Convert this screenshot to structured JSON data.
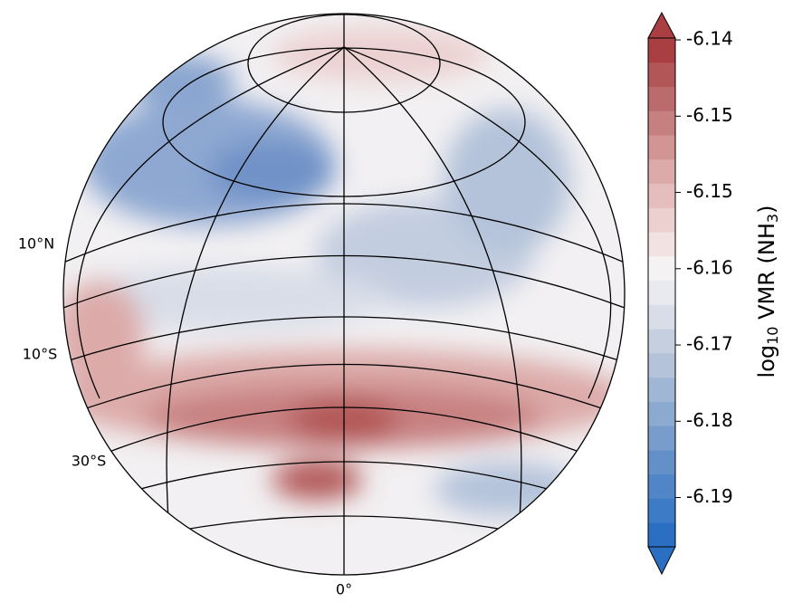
{
  "chart_data": {
    "type": "contour-globe",
    "lat_labels": [
      "10°N",
      "10°S",
      "30°S"
    ],
    "lon_labels": [
      "0°"
    ],
    "colorbar": {
      "label": [
        "log",
        "10",
        " VMR (NH",
        "3",
        ")"
      ],
      "clim": [
        -6.192,
        -6.1373
      ],
      "ticks": [
        {
          "value": -6.1375,
          "label": "-6.14"
        },
        {
          "value": -6.1457,
          "label": "-6.15"
        },
        {
          "value": -6.1539,
          "label": "-6.15"
        },
        {
          "value": -6.1621,
          "label": "-6.16"
        },
        {
          "value": -6.1703,
          "label": "-6.17"
        },
        {
          "value": -6.1785,
          "label": "-6.18"
        },
        {
          "value": -6.1867,
          "label": "-6.19"
        }
      ],
      "colors": [
        "#2b6fc3",
        "#3d7bc6",
        "#5085c8",
        "#6490c9",
        "#789dcc",
        "#8ca9d0",
        "#a0b6d5",
        "#b4c3da",
        "#c6cfe0",
        "#d8dde8",
        "#e8eaf0",
        "#f4f2f2",
        "#f2e2e2",
        "#ecd0d0",
        "#e5bdbc",
        "#dcaaa9",
        "#d29594",
        "#c78080",
        "#bc6b6c",
        "#b25657",
        "#a93f43"
      ]
    }
  }
}
